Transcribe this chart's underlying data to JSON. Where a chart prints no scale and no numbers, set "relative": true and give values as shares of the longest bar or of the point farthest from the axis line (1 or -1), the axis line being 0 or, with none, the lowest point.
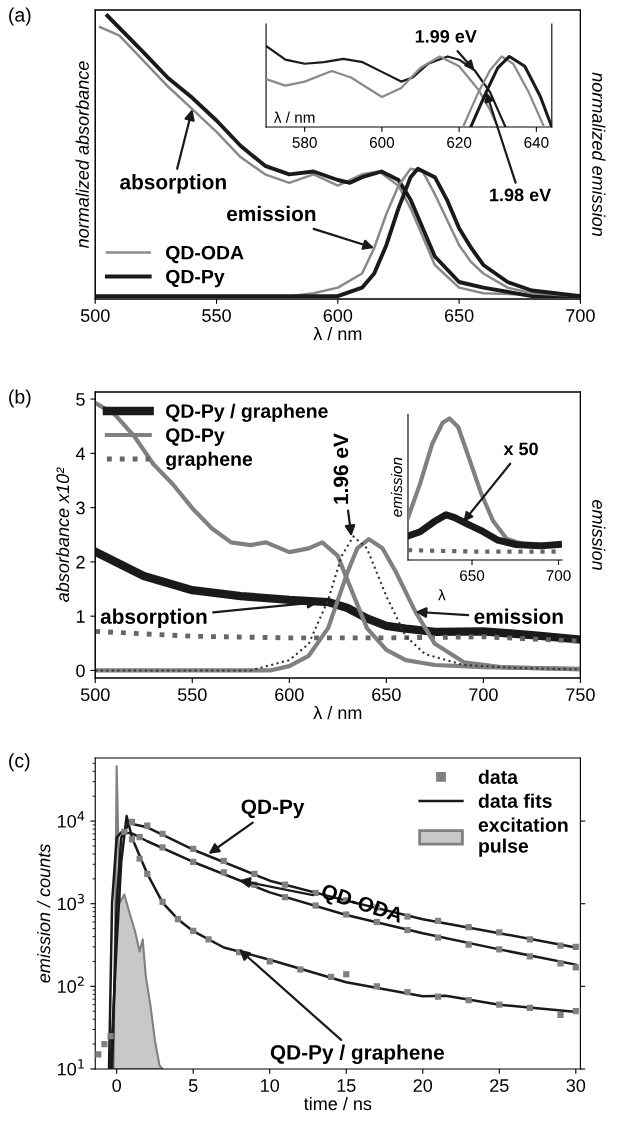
{
  "chart_data": [
    {
      "type": "line",
      "annotations": [
        "(a)",
        {
          "text": "absorption",
          "x": 540,
          "y": 0.67
        },
        {
          "text": "emission",
          "x": 615,
          "y": 0.18
        }
      ],
      "xlabel": "λ / nm",
      "ylabel": "normalized absorbance",
      "y2label": "normalized emission",
      "xlim": [
        500,
        700
      ],
      "xticks": [
        500,
        550,
        600,
        650,
        700
      ],
      "relative": true,
      "tick_labels": "x",
      "legend": "bottom left",
      "series": [
        {
          "name": "QD-ODA",
          "color": "#8a8a8a",
          "x": [
            502,
            510,
            520,
            530,
            540,
            550,
            560,
            570,
            580,
            590,
            600,
            610,
            617,
            625,
            630,
            640,
            650,
            660,
            700
          ],
          "values": [
            0.96,
            0.93,
            0.84,
            0.75,
            0.67,
            0.59,
            0.5,
            0.44,
            0.41,
            0.44,
            0.4,
            0.44,
            0.45,
            0.4,
            0.32,
            0.12,
            0.04,
            0.02,
            0.01
          ]
        },
        {
          "name": "QD-Py",
          "color": "#1a1a1a",
          "x": [
            505,
            520,
            530,
            540,
            550,
            560,
            570,
            580,
            590,
            600,
            605,
            610,
            618,
            625,
            630,
            640,
            650,
            660,
            680,
            700
          ],
          "values": [
            1.0,
            0.87,
            0.78,
            0.71,
            0.63,
            0.54,
            0.47,
            0.44,
            0.45,
            0.42,
            0.41,
            0.43,
            0.45,
            0.42,
            0.35,
            0.15,
            0.06,
            0.04,
            0.01,
            0.01
          ]
        },
        {
          "color": "#8a8a8a",
          "x": [
            500,
            580,
            590,
            600,
            610,
            615,
            620,
            625,
            630,
            635,
            640,
            645,
            650,
            655,
            660,
            670,
            680,
            700
          ],
          "values": [
            0.01,
            0.01,
            0.02,
            0.04,
            0.09,
            0.18,
            0.3,
            0.4,
            0.46,
            0.45,
            0.37,
            0.28,
            0.19,
            0.13,
            0.09,
            0.04,
            0.02,
            0.01
          ]
        },
        {
          "color": "#1a1a1a",
          "x": [
            500,
            600,
            610,
            615,
            620,
            625,
            630,
            633,
            640,
            645,
            650,
            655,
            660,
            670,
            680,
            700
          ],
          "values": [
            0.01,
            0.01,
            0.04,
            0.09,
            0.19,
            0.32,
            0.43,
            0.46,
            0.43,
            0.35,
            0.25,
            0.18,
            0.12,
            0.06,
            0.03,
            0.01
          ]
        }
      ]
    },
    {
      "type": "line",
      "annotations": [
        {
          "text": "1.99 eV",
          "x": 624,
          "y": 0.7
        },
        {
          "text": "1.98 eV",
          "x": 627,
          "y": 0.43
        }
      ],
      "xlabel": "λ / nm",
      "xlim": [
        570,
        644
      ],
      "xticks": [
        580,
        600,
        620,
        640
      ],
      "relative": true,
      "tick_labels": "x",
      "series": [
        {
          "color": "#1a1a1a",
          "x": [
            570,
            575,
            580,
            585,
            590,
            595,
            600,
            605,
            608,
            612,
            617,
            620,
            624,
            628,
            632
          ],
          "values": [
            1.0,
            0.83,
            0.78,
            0.8,
            0.84,
            0.8,
            0.68,
            0.56,
            0.61,
            0.78,
            0.87,
            0.83,
            0.7,
            0.43,
            0
          ]
        },
        {
          "color": "#8a8a8a",
          "x": [
            570,
            575,
            580,
            587,
            592,
            600,
            605,
            610,
            615,
            620,
            625,
            628,
            630
          ],
          "values": [
            0.59,
            0.51,
            0.56,
            0.69,
            0.61,
            0.37,
            0.48,
            0.73,
            0.87,
            0.75,
            0.46,
            0.21,
            0
          ]
        },
        {
          "color": "#8a8a8a",
          "x": [
            621,
            625,
            628,
            631,
            634,
            638,
            642
          ],
          "values": [
            0,
            0.43,
            0.7,
            0.87,
            0.78,
            0.43,
            0
          ]
        },
        {
          "color": "#1a1a1a",
          "x": [
            623,
            627,
            630,
            633,
            637,
            641,
            644
          ],
          "values": [
            0,
            0.43,
            0.73,
            0.87,
            0.75,
            0.38,
            0
          ]
        }
      ]
    },
    {
      "type": "line",
      "annotations": [
        "(b)",
        {
          "text": "1.96 eV",
          "x": 632,
          "y": 2.47
        },
        {
          "text": "absorption",
          "x": 615,
          "y": 1.26
        },
        {
          "text": "emission",
          "x": 665,
          "y": 1.08
        }
      ],
      "xlabel": "λ / nm",
      "ylabel": "absorbance x10²",
      "y2label": "emission",
      "xlim": [
        500,
        750
      ],
      "xticks": [
        500,
        550,
        600,
        650,
        700,
        750
      ],
      "ylim": [
        -0.14,
        5.13
      ],
      "yticks": [
        0,
        1,
        2,
        3,
        4,
        5
      ],
      "legend": "top left",
      "series": [
        {
          "name": "QD-Py / graphene",
          "color": "#1a1a1a",
          "x": [
            500,
            525,
            550,
            575,
            600,
            620,
            630,
            640,
            650,
            660,
            675,
            700,
            725,
            750
          ],
          "values": [
            2.19,
            1.74,
            1.48,
            1.37,
            1.3,
            1.26,
            1.15,
            0.96,
            0.82,
            0.77,
            0.71,
            0.72,
            0.65,
            0.57
          ]
        },
        {
          "name": "QD-Py",
          "color": "#808080",
          "x": [
            500,
            510,
            520,
            530,
            540,
            550,
            560,
            570,
            580,
            588,
            600,
            610,
            617,
            625,
            630,
            640,
            650,
            660,
            675,
            700,
            750
          ],
          "values": [
            4.93,
            4.72,
            4.32,
            3.8,
            3.43,
            2.99,
            2.62,
            2.36,
            2.31,
            2.36,
            2.18,
            2.25,
            2.36,
            2.11,
            1.66,
            0.78,
            0.38,
            0.19,
            0.1,
            0.06,
            0.03
          ]
        },
        {
          "name": "graphene",
          "color": "#666666",
          "line_style": "dotted",
          "x": [
            500,
            550,
            600,
            650,
            700,
            750
          ],
          "values": [
            0.72,
            0.63,
            0.6,
            0.6,
            0.62,
            0.54
          ]
        },
        {
          "color": "#808080",
          "x": [
            500,
            590,
            600,
            610,
            620,
            630,
            635,
            641,
            648,
            655,
            665,
            675,
            690,
            710,
            750
          ],
          "values": [
            0,
            0,
            0.08,
            0.27,
            0.78,
            1.81,
            2.25,
            2.42,
            2.25,
            1.81,
            1.08,
            0.49,
            0.15,
            0.06,
            0.02
          ]
        },
        {
          "color": "#333333",
          "line_style": "dotted",
          "x": [
            500,
            580,
            600,
            610,
            620,
            627,
            633,
            640,
            650,
            660,
            670,
            690,
            720,
            750
          ],
          "values": [
            0,
            0,
            0.19,
            0.49,
            1.3,
            2.11,
            2.47,
            2.25,
            1.37,
            0.63,
            0.3,
            0.1,
            0.04,
            0.02
          ]
        }
      ]
    },
    {
      "type": "line",
      "annotations": [
        {
          "text": "x 50",
          "x": 645,
          "y": 0.27
        }
      ],
      "xlabel": "λ",
      "ylabel": "emission",
      "xlim": [
        613,
        702
      ],
      "xticks": [
        650,
        700
      ],
      "relative": true,
      "tick_labels": "x",
      "series": [
        {
          "color": "#808080",
          "x": [
            613,
            620,
            627,
            633,
            637,
            642,
            648,
            655,
            662,
            670,
            680,
            690,
            700
          ],
          "values": [
            0.3,
            0.54,
            0.82,
            0.97,
            1.0,
            0.94,
            0.73,
            0.48,
            0.28,
            0.15,
            0.11,
            0.11,
            0.11
          ]
        },
        {
          "color": "#1a1a1a",
          "x": [
            613,
            620,
            628,
            635,
            640,
            648,
            655,
            665,
            675,
            690,
            700
          ],
          "values": [
            0.17,
            0.2,
            0.27,
            0.32,
            0.3,
            0.25,
            0.21,
            0.14,
            0.11,
            0.1,
            0.11
          ]
        },
        {
          "color": "#666666",
          "line_style": "dotted",
          "x": [
            613,
            650,
            700
          ],
          "values": [
            0.07,
            0.06,
            0.06
          ]
        }
      ]
    },
    {
      "type": "line",
      "annotations": [
        "(c)",
        {
          "text": "QD-Py",
          "x": 6,
          "y": 4000
        },
        {
          "text": "QD-ODA",
          "x": 8,
          "y": 1920
        },
        {
          "text": "QD-Py / graphene",
          "x": 8,
          "y": 280
        }
      ],
      "xlabel": "time / ns",
      "ylabel": "emission / counts",
      "log": "y",
      "xlim": [
        -1.4,
        30.3
      ],
      "xticks": [
        0,
        5,
        10,
        15,
        20,
        25,
        30
      ],
      "ylim": [
        10,
        58000
      ],
      "yticks": [
        {
          "value": 10,
          "label": "10$^{1}$"
        },
        {
          "value": 100,
          "label": "10$^{2}$"
        },
        {
          "value": 1000,
          "label": "10$^{3}$"
        },
        {
          "value": 10000,
          "label": "10$^{4}$"
        }
      ],
      "legend": "top right",
      "series": [
        {
          "name": "data",
          "type": "scatter",
          "marker": "square",
          "color": "#808080",
          "x": [
            1,
            2,
            3,
            5,
            7,
            9,
            11,
            13,
            15,
            17,
            19,
            21,
            23,
            25,
            27,
            29,
            30,
            0.5,
            1.5,
            3,
            5,
            7,
            9,
            11,
            13,
            15,
            17,
            19,
            21,
            23,
            25,
            27,
            29,
            30,
            -1.2,
            -0.8,
            -0.4,
            1,
            1.5,
            2,
            3,
            4,
            5,
            6,
            8,
            10,
            12,
            14,
            15,
            17,
            19,
            21,
            23,
            25,
            27,
            29,
            30
          ],
          "values": [
            9800,
            8800,
            7000,
            4600,
            3300,
            2300,
            1700,
            1350,
            1100,
            900,
            700,
            620,
            520,
            450,
            370,
            310,
            300,
            7400,
            6400,
            4800,
            3200,
            2400,
            1700,
            1200,
            950,
            740,
            600,
            480,
            390,
            320,
            280,
            230,
            190,
            170,
            15,
            20,
            25,
            6000,
            3500,
            2300,
            1050,
            650,
            470,
            370,
            260,
            200,
            160,
            130,
            140,
            100,
            85,
            75,
            68,
            60,
            55,
            45,
            50
          ]
        },
        {
          "name": "data fits",
          "color": "#1a1a1a",
          "x": [
            -0.3,
            0,
            0.3,
            0.8,
            2,
            5,
            10,
            15,
            20,
            25,
            30
          ],
          "values": [
            10,
            1030,
            6300,
            9400,
            8400,
            4500,
            1900,
            1090,
            650,
            440,
            295
          ]
        },
        {
          "color": "#1a1a1a",
          "x": [
            -0.5,
            -0.3,
            0,
            0.3,
            1,
            2,
            5,
            10,
            15,
            20,
            25,
            30
          ],
          "values": [
            10,
            1030,
            6300,
            7300,
            7100,
            5700,
            3200,
            1370,
            730,
            440,
            280,
            183
          ]
        },
        {
          "color": "#1a1a1a",
          "x": [
            -0.4,
            0,
            0.3,
            0.65,
            1,
            2,
            3,
            4,
            5,
            7,
            10,
            15,
            20,
            21.5,
            25,
            30
          ],
          "values": [
            10,
            330,
            3200,
            11500,
            6300,
            2300,
            1030,
            650,
            465,
            295,
            210,
            112,
            76,
            77,
            60,
            49
          ]
        },
        {
          "name": "excitation\npulse",
          "type": "area",
          "color": "#808080",
          "x": [
            -0.2,
            0,
            0.2,
            0.5,
            0.8,
            1.2,
            1.5,
            1.7,
            1.9,
            2.2,
            2.5,
            2.8,
            3.0
          ],
          "values": [
            10,
            46000,
            1030,
            1290,
            820,
            465,
            264,
            370,
            133,
            60,
            22,
            11,
            10
          ]
        }
      ]
    }
  ]
}
